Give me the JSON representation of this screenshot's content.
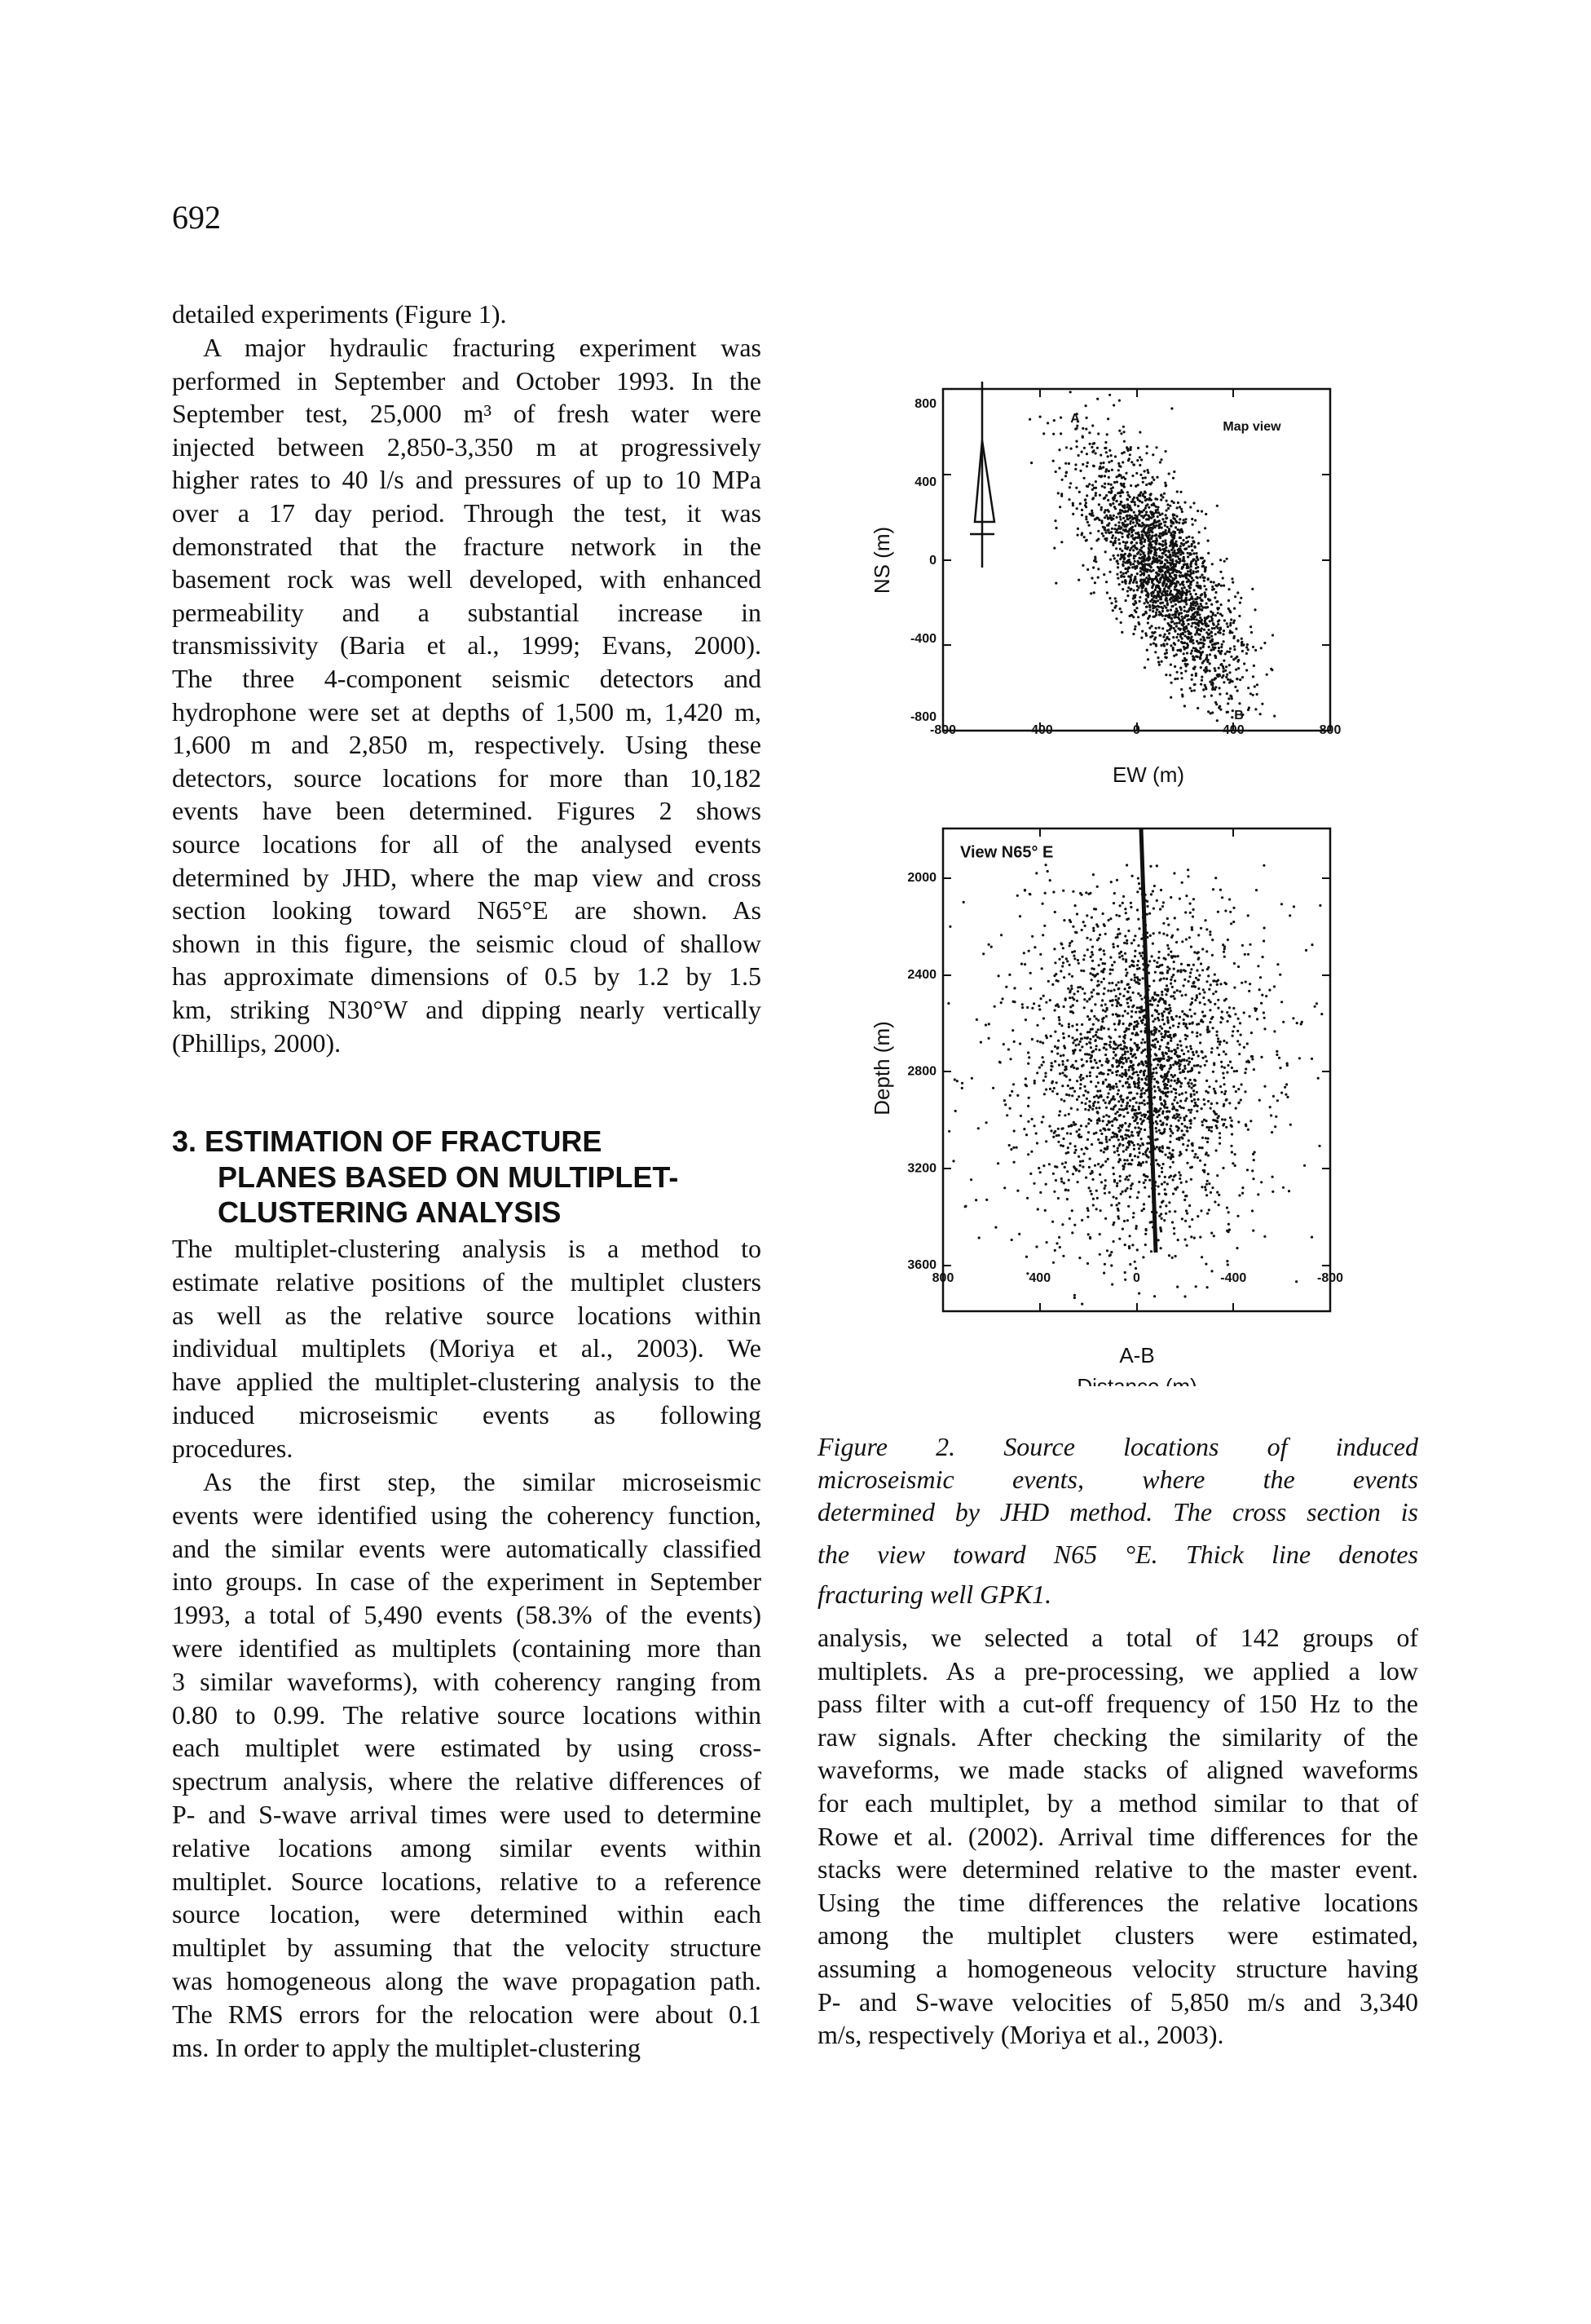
{
  "page_number": "692",
  "left_column": {
    "continued_lines": [
      "detailed experiments (Figure 1)."
    ],
    "paragraph_1": [
      "A major hydraulic fracturing experiment was",
      "performed in September and October 1993. In the",
      "September test, 25,000 m³ of fresh water were",
      "injected between 2,850-3,350 m at progressively",
      "higher rates to 40 l/s and pressures of up to 10 MPa",
      "over a 17 day period. Through the test, it was",
      "demonstrated that the fracture network in the",
      "basement rock was well developed, with enhanced",
      "permeability and a substantial increase in",
      "transmissivity (Baria et al., 1999; Evans, 2000).",
      "The three 4-component seismic detectors and",
      "hydrophone were set at depths of 1,500 m, 1,420 m,",
      "1,600 m and 2,850 m, respectively. Using these",
      "detectors, source locations for more than 10,182",
      "events have been determined. Figures 2 shows",
      "source locations for all of the analysed events",
      "determined by JHD, where the map view and cross",
      "section looking toward N65°E are shown. As",
      "shown in this figure, the seismic cloud of shallow",
      "has approximate dimensions of 0.5 by 1.2 by 1.5",
      "km, striking N30°W and dipping nearly vertically",
      "(Phillips, 2000)."
    ],
    "heading": [
      "3. ESTIMATION OF FRACTURE",
      "PLANES BASED ON MULTIPLET-",
      "CLUSTERING ANALYSIS"
    ],
    "paragraph_2": [
      "The multiplet-clustering analysis is a method to",
      "estimate relative positions of the multiplet clusters",
      "as well as the relative source locations within",
      "individual multiplets (Moriya et al., 2003). We",
      "have applied the multiplet-clustering analysis to the",
      "induced microseismic events as following",
      "procedures."
    ],
    "paragraph_3": [
      "As the first step, the similar microseismic",
      "events were identified using the coherency function,",
      "and the similar events were automatically classified",
      "into groups. In case of the experiment in September",
      "1993, a total of 5,490 events (58.3% of the events)",
      "were identified as multiplets (containing more than",
      "3 similar waveforms), with coherency ranging from",
      "0.80 to 0.99. The relative source locations within",
      "each multiplet were estimated by using cross-",
      "spectrum analysis, where the relative differences of",
      "P- and S-wave arrival times were used to determine",
      "relative locations among similar events within",
      "multiplet. Source locations, relative to a reference",
      "source location, were determined within each",
      "multiplet by assuming that the velocity structure",
      "was homogeneous along the wave propagation path.",
      "The RMS errors for the relocation were about 0.1",
      "ms. In order to apply the multiplet-clustering"
    ]
  },
  "figure": {
    "map_view": {
      "panel_label": "Map view",
      "y_label": "NS (m)",
      "x_label": "EW (m)",
      "point_a": "A",
      "point_b": "B",
      "yticks": [
        "800",
        "400",
        "0",
        "-400",
        "-800"
      ],
      "xticks": [
        "-800",
        "-400",
        "0",
        "400",
        "800"
      ]
    },
    "cross_section": {
      "panel_label": "View N65° E",
      "y_label": "Depth (m)",
      "x_label": "A-B",
      "x_label_2": "Distance (m)",
      "yticks": [
        "2000",
        "2400",
        "2800",
        "3200",
        "3600"
      ],
      "xticks": [
        "800",
        "400",
        "0",
        "-400",
        "-800"
      ]
    },
    "caption": [
      "Figure 2. Source locations of induced",
      "microseismic events, where the events",
      "determined by JHD method. The cross section is",
      "the view toward N65 °E. Thick line denotes",
      "fracturing well GPK1."
    ]
  },
  "right_column": {
    "continued_lines": [
      "analysis, we selected a total of 142 groups of",
      "multiplets. As a pre-processing, we applied a low",
      "pass filter with a cut-off frequency of 150 Hz to the",
      "raw signals. After checking the similarity of the",
      "waveforms, we made stacks of aligned waveforms",
      "for each multiplet, by a method similar to that of",
      "Rowe et al. (2002). Arrival time differences for the",
      "stacks were determined relative to the master event.",
      "Using the time differences the relative locations",
      "among the multiplet clusters were estimated,",
      "assuming a homogeneous velocity structure having",
      "P- and S-wave velocities of 5,850 m/s and 3,340",
      "m/s, respectively (Moriya et al., 2003)."
    ]
  }
}
